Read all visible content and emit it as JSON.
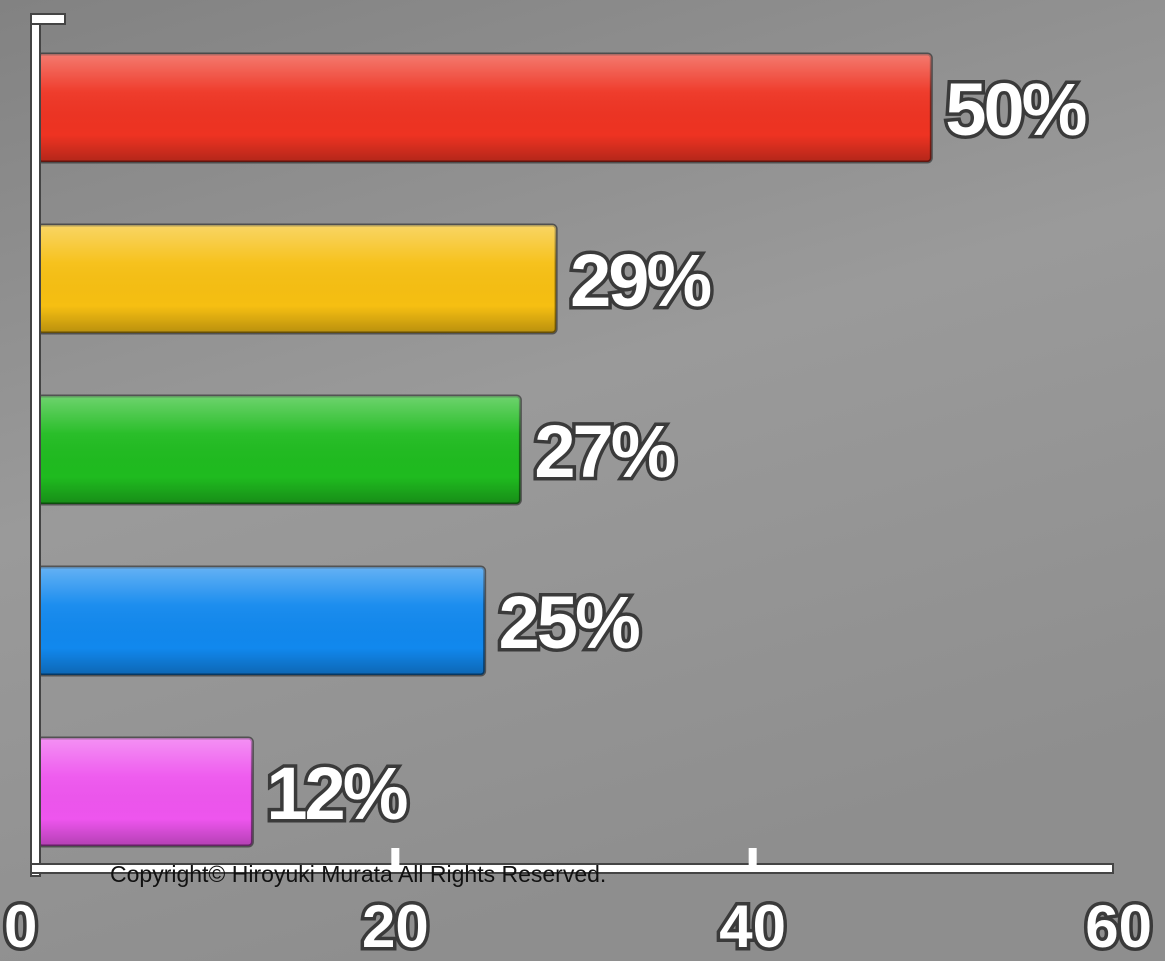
{
  "chart_data": {
    "type": "bar",
    "orientation": "horizontal",
    "categories": [
      "",
      "",
      "",
      "",
      ""
    ],
    "values": [
      50,
      29,
      27,
      25,
      12
    ],
    "data_labels": [
      "50%",
      "29%",
      "27%",
      "25%",
      "12%"
    ],
    "colors": [
      "#ee3322",
      "#f6bf12",
      "#1fbb1f",
      "#1188ee",
      "#ee55ee"
    ],
    "xlim": [
      0,
      60
    ],
    "x_ticks": [
      0,
      20,
      40,
      60
    ],
    "x_tick_labels": [
      "0",
      "20",
      "40",
      "60"
    ],
    "title": "",
    "xlabel": "",
    "ylabel": "",
    "grid": false,
    "legend": "none"
  },
  "copyright": "Copyright© Hiroyuki Murata All Rights Reserved.",
  "colors": {
    "background_top": "#8a8a8a",
    "background_bottom": "#a4a4a4",
    "axis": "#ffffff"
  }
}
